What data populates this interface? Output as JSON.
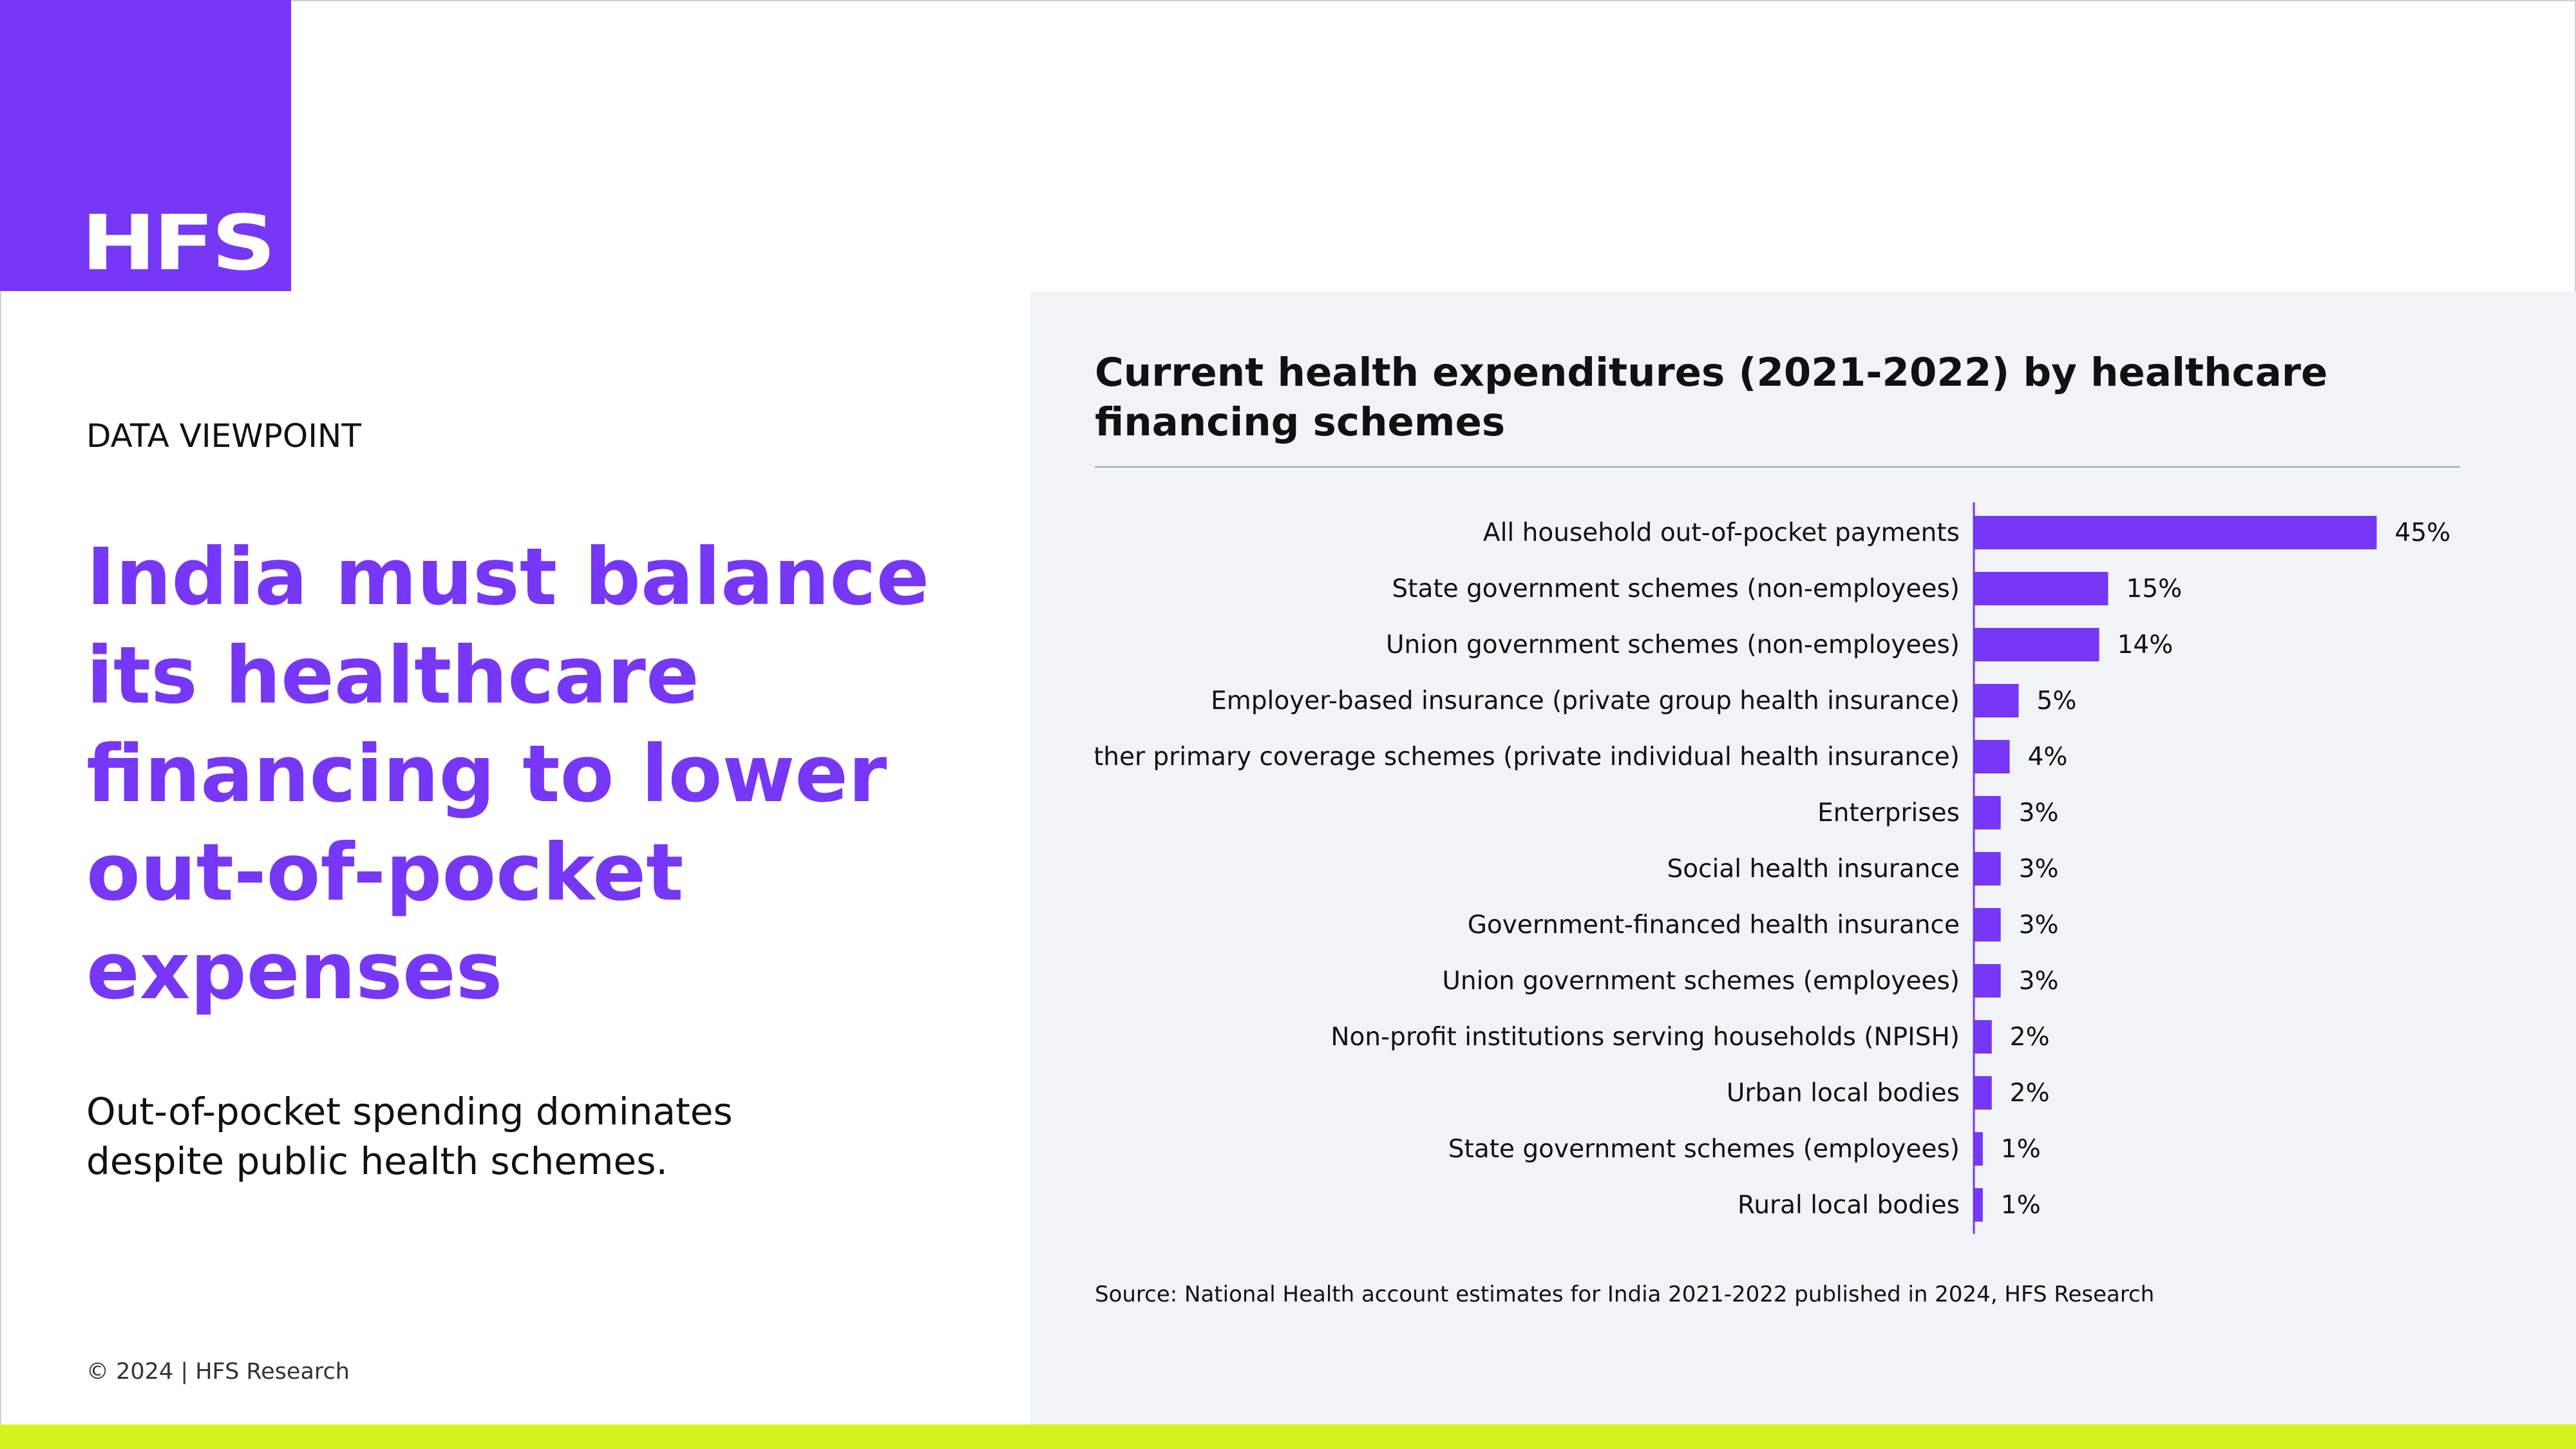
{
  "brand": {
    "logo_text": "HFS",
    "accent_color": "#7637f7",
    "highlight_color": "#d6f21c"
  },
  "left": {
    "kicker": "DATA VIEWPOINT",
    "headline": "India must balance its healthcare financing to lower out-of-pocket expenses",
    "subheadline": "Out-of-pocket spending dominates despite public health schemes.",
    "copyright": "© 2024 | HFS Research"
  },
  "chart_data": {
    "type": "bar",
    "orientation": "horizontal",
    "title": "Current health expenditures (2021-2022) by healthcare financing schemes",
    "categories": [
      "All household out-of-pocket payments",
      "State government schemes (non-employees)",
      "Union government schemes (non-employees)",
      "Employer-based insurance (private group health insurance)",
      "Other primary coverage schemes (private individual health insurance)",
      "Enterprises",
      "Social health insurance",
      "Government-financed health insurance",
      "Union government schemes (employees)",
      "Non-profit institutions serving households (NPISH)",
      "Urban local bodies",
      "State government schemes (employees)",
      "Rural local bodies"
    ],
    "values": [
      45,
      15,
      14,
      5,
      4,
      3,
      3,
      3,
      3,
      2,
      2,
      1,
      1
    ],
    "value_labels": [
      "45%",
      "15%",
      "14%",
      "5%",
      "4%",
      "3%",
      "3%",
      "3%",
      "3%",
      "2%",
      "2%",
      "1%",
      "1%"
    ],
    "unit": "%",
    "bar_color": "#7637f7",
    "grid": false,
    "legend": "none",
    "source": "Source: National Health account estimates for India 2021-2022 published in 2024, HFS Research"
  }
}
